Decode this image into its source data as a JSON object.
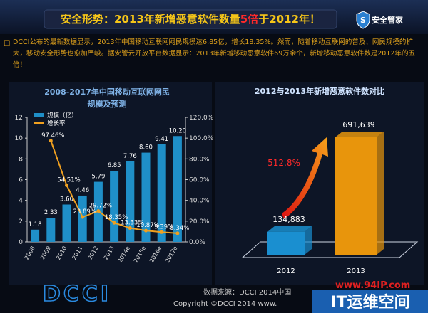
{
  "header": {
    "title_parts": [
      "安全形势：",
      "2013年新增恶意软件数量",
      "5倍",
      "于2012年！"
    ],
    "logo_icon": "S",
    "logo_text": "安全管家"
  },
  "intro": "DCCI公布的最新数据显示，2013年中国移动互联网网民规模达6.85亿，增长18.35%。然而，随着移动互联网的普及、网民规模的扩大，移动安全形势也愈加严峻。据安管云开放平台数据显示：2013年新增移动恶意软件69万余个，新增移动恶意软件数是2012年的五倍！",
  "chart_data": [
    {
      "type": "bar-line",
      "title_lines": [
        "2008-2017年中国移动互联网网民",
        "规模及预测"
      ],
      "categories": [
        "2008",
        "2009",
        "2010",
        "2011",
        "2012",
        "2013",
        "2014e",
        "2015e",
        "2016e",
        "2017e"
      ],
      "series": [
        {
          "name": "规模（亿）",
          "color": "#1f8fc8",
          "values": [
            1.18,
            2.33,
            3.6,
            4.46,
            5.79,
            6.85,
            7.76,
            8.6,
            9.41,
            10.2
          ],
          "value_labels": [
            "1.18",
            "2.33",
            "3.60",
            "4.46",
            "5.79",
            "6.85",
            "7.76",
            "8.60",
            "9.41",
            "10.20"
          ]
        },
        {
          "name": "增长率",
          "color": "#f0a020",
          "axis": "y2",
          "values": [
            null,
            97.46,
            54.51,
            23.89,
            29.72,
            18.35,
            13.33,
            10.87,
            9.39,
            8.34
          ],
          "value_labels": [
            null,
            "97.46%",
            "54.51%",
            "23.89%",
            "29.72%",
            "18.35%",
            "13.33%",
            "10.87%",
            "9.39%",
            "8.34%"
          ]
        }
      ],
      "ylim": [
        0,
        12
      ],
      "yticks": [
        0,
        2,
        4,
        6,
        8,
        10,
        12
      ],
      "y2lim": [
        0,
        120
      ],
      "y2ticks": [
        {
          "value": 0,
          "label": "0.0%"
        },
        {
          "value": 20,
          "label": "20.0%"
        },
        {
          "value": 40,
          "label": "40.0%"
        },
        {
          "value": 60,
          "label": "60.0%"
        },
        {
          "value": 80,
          "label": "80.0%"
        },
        {
          "value": 100,
          "label": "100.0%"
        },
        {
          "value": 120,
          "label": "120.0%"
        }
      ]
    },
    {
      "type": "bar3d",
      "title": "2012与2013年新增恶意软件数对比",
      "categories": [
        "2012",
        "2013"
      ],
      "series": [
        {
          "colors": [
            "#1a8fd0",
            "#e8950c"
          ],
          "values": [
            134883,
            691639
          ],
          "value_labels": [
            "134,883",
            "691,639"
          ]
        }
      ],
      "annotation": "512.8%"
    }
  ],
  "footer": {
    "logo": "DCCI",
    "source": "数据来源：DCCI 2014中国",
    "copyright": "Copyright ©DCCI 2014 www."
  },
  "watermark": {
    "url": "www.94IP.com",
    "name": "IT运维空间"
  }
}
